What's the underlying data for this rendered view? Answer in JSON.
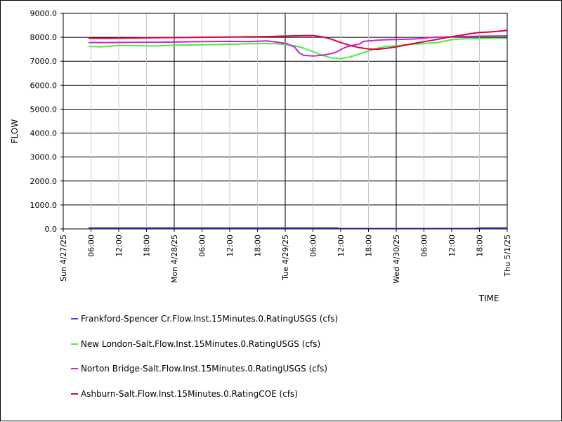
{
  "chart_data": {
    "type": "line",
    "xlabel": "TIME",
    "ylabel": "FLOW",
    "ylim": [
      0,
      9000
    ],
    "y_ticks": [
      "0.0",
      "1000.0",
      "2000.0",
      "3000.0",
      "4000.0",
      "5000.0",
      "6000.0",
      "7000.0",
      "8000.0",
      "9000.0"
    ],
    "xlim": [
      "2025-04-27 00:00",
      "2025-05-01 00:00"
    ],
    "x_ticks": [
      {
        "label": "Sun 4/27/25",
        "hour": 0,
        "major": true
      },
      {
        "label": "06:00",
        "hour": 6,
        "major": false
      },
      {
        "label": "12:00",
        "hour": 12,
        "major": false
      },
      {
        "label": "18:00",
        "hour": 18,
        "major": false
      },
      {
        "label": "Mon 4/28/25",
        "hour": 24,
        "major": true
      },
      {
        "label": "06:00",
        "hour": 30,
        "major": false
      },
      {
        "label": "12:00",
        "hour": 36,
        "major": false
      },
      {
        "label": "18:00",
        "hour": 42,
        "major": false
      },
      {
        "label": "Tue 4/29/25",
        "hour": 48,
        "major": true
      },
      {
        "label": "06:00",
        "hour": 54,
        "major": false
      },
      {
        "label": "12:00",
        "hour": 60,
        "major": false
      },
      {
        "label": "18:00",
        "hour": 66,
        "major": false
      },
      {
        "label": "Wed 4/30/25",
        "hour": 72,
        "major": true
      },
      {
        "label": "06:00",
        "hour": 78,
        "major": false
      },
      {
        "label": "12:00",
        "hour": 84,
        "major": false
      },
      {
        "label": "18:00",
        "hour": 90,
        "major": false
      },
      {
        "label": "Thu 5/1/25",
        "hour": 96,
        "major": true
      }
    ],
    "grid": true,
    "legend_position": "bottom",
    "series": [
      {
        "name": "Frankford-Spencer Cr.Flow.Inst.15Minutes.0.RatingUSGS (cfs)",
        "color": "#4444ee",
        "points": [
          [
            5.5,
            40
          ],
          [
            20,
            40
          ],
          [
            40,
            40
          ],
          [
            55,
            40
          ],
          [
            59,
            40
          ],
          [
            60,
            15
          ],
          [
            70,
            15
          ],
          [
            80,
            15
          ],
          [
            89,
            15
          ],
          [
            90,
            40
          ],
          [
            96,
            40
          ]
        ]
      },
      {
        "name": "New London-Salt.Flow.Inst.15Minutes.0.RatingUSGS (cfs)",
        "color": "#44ee44",
        "points": [
          [
            5.5,
            7620
          ],
          [
            8,
            7600
          ],
          [
            12,
            7660
          ],
          [
            16,
            7650
          ],
          [
            20,
            7640
          ],
          [
            24,
            7670
          ],
          [
            30,
            7690
          ],
          [
            36,
            7710
          ],
          [
            42,
            7740
          ],
          [
            46,
            7730
          ],
          [
            48,
            7700
          ],
          [
            50,
            7650
          ],
          [
            52,
            7550
          ],
          [
            54,
            7400
          ],
          [
            56,
            7250
          ],
          [
            58,
            7140
          ],
          [
            60,
            7110
          ],
          [
            62,
            7180
          ],
          [
            64,
            7300
          ],
          [
            66,
            7430
          ],
          [
            68,
            7550
          ],
          [
            70,
            7620
          ],
          [
            72,
            7650
          ],
          [
            75,
            7700
          ],
          [
            78,
            7740
          ],
          [
            81,
            7780
          ],
          [
            84,
            7900
          ],
          [
            86,
            7930
          ],
          [
            90,
            7950
          ],
          [
            93,
            7960
          ],
          [
            96,
            7960
          ]
        ]
      },
      {
        "name": "Norton Bridge-Salt.Flow.Inst.15Minutes.0.RatingUSGS (cfs)",
        "color": "#cc22cc",
        "points": [
          [
            5.5,
            7780
          ],
          [
            10,
            7780
          ],
          [
            16,
            7790
          ],
          [
            20,
            7790
          ],
          [
            24,
            7800
          ],
          [
            30,
            7820
          ],
          [
            36,
            7830
          ],
          [
            40,
            7820
          ],
          [
            44,
            7850
          ],
          [
            46,
            7800
          ],
          [
            48,
            7750
          ],
          [
            50,
            7600
          ],
          [
            51,
            7350
          ],
          [
            52,
            7250
          ],
          [
            54,
            7220
          ],
          [
            56,
            7250
          ],
          [
            58,
            7320
          ],
          [
            59,
            7380
          ],
          [
            60,
            7480
          ],
          [
            61,
            7580
          ],
          [
            62,
            7640
          ],
          [
            64,
            7720
          ],
          [
            65,
            7830
          ],
          [
            68,
            7880
          ],
          [
            70,
            7900
          ],
          [
            72,
            7910
          ],
          [
            76,
            7930
          ],
          [
            80,
            8000
          ],
          [
            84,
            8020
          ],
          [
            88,
            8040
          ],
          [
            92,
            8050
          ],
          [
            96,
            8060
          ]
        ]
      },
      {
        "name": "Ashburn-Salt.Flow.Inst.15Minutes.0.RatingCOE (cfs)",
        "color": "#dd0044",
        "points": [
          [
            5.5,
            7960
          ],
          [
            10,
            7960
          ],
          [
            16,
            7970
          ],
          [
            20,
            7980
          ],
          [
            24,
            7990
          ],
          [
            30,
            8000
          ],
          [
            36,
            8010
          ],
          [
            40,
            8020
          ],
          [
            44,
            8030
          ],
          [
            48,
            8050
          ],
          [
            52,
            8070
          ],
          [
            54,
            8070
          ],
          [
            56,
            8020
          ],
          [
            58,
            7920
          ],
          [
            60,
            7780
          ],
          [
            62,
            7660
          ],
          [
            64,
            7570
          ],
          [
            66,
            7510
          ],
          [
            68,
            7500
          ],
          [
            70,
            7540
          ],
          [
            72,
            7600
          ],
          [
            76,
            7750
          ],
          [
            80,
            7880
          ],
          [
            84,
            8030
          ],
          [
            86,
            8080
          ],
          [
            88,
            8150
          ],
          [
            90,
            8200
          ],
          [
            92,
            8220
          ],
          [
            94,
            8250
          ],
          [
            96,
            8290
          ]
        ]
      }
    ]
  }
}
